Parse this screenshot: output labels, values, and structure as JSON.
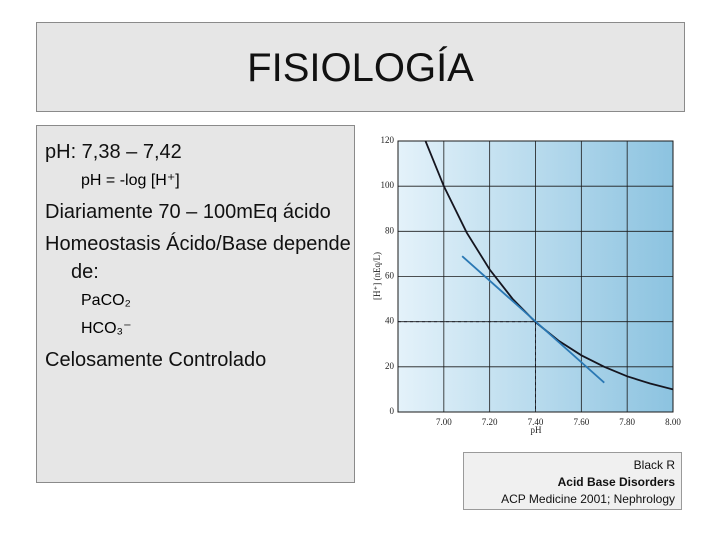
{
  "title": "FISIOLOGÍA",
  "bullets": [
    {
      "text": "pH: 7,38 – 7,42",
      "sub": [
        "pH = -log [H⁺]"
      ]
    },
    {
      "text": "Diariamente 70 – 100mEq ácido"
    },
    {
      "text": "Homeostasis Ácido/Base depende de:",
      "sub": [
        "PaCO₂",
        "HCO₃⁻"
      ]
    },
    {
      "text": "Celosamente Controlado"
    }
  ],
  "chart_data": {
    "type": "line",
    "xlabel": "pH",
    "ylabel": "[H⁺] (nEq/L)",
    "xlim": [
      6.8,
      8.0
    ],
    "ylim": [
      0,
      120
    ],
    "xticks": [
      {
        "value": 7,
        "label": "7.00"
      },
      {
        "value": 7.2,
        "label": "7.20"
      },
      {
        "value": 7.4,
        "label": "7.40"
      },
      {
        "value": 7.6,
        "label": "7.60"
      },
      {
        "value": 7.8,
        "label": "7.80"
      },
      {
        "value": 8,
        "label": "8.00"
      }
    ],
    "yticks": [
      0,
      20,
      40,
      60,
      80,
      100,
      120
    ],
    "grid": true,
    "series": [
      {
        "color": "#15151f",
        "x": [
          6.92,
          7.0,
          7.1,
          7.2,
          7.3,
          7.4,
          7.5,
          7.6,
          7.7,
          7.8,
          7.9,
          8.0
        ],
        "values": [
          120,
          100,
          79.4,
          63.1,
          50.1,
          39.8,
          31.6,
          25.1,
          20,
          15.8,
          12.6,
          10
        ]
      },
      {
        "color": "#2a78b4",
        "x": [
          7.08,
          7.7
        ],
        "values": [
          69,
          13
        ]
      },
      {
        "color": "#15151f",
        "dash": true,
        "x": [
          6.8,
          7.4,
          7.4
        ],
        "values": [
          40,
          40,
          0
        ]
      }
    ]
  },
  "citation": {
    "author": "Black R",
    "work": "Acid Base Disorders",
    "source": "ACP Medicine 2001; Nephrology"
  }
}
